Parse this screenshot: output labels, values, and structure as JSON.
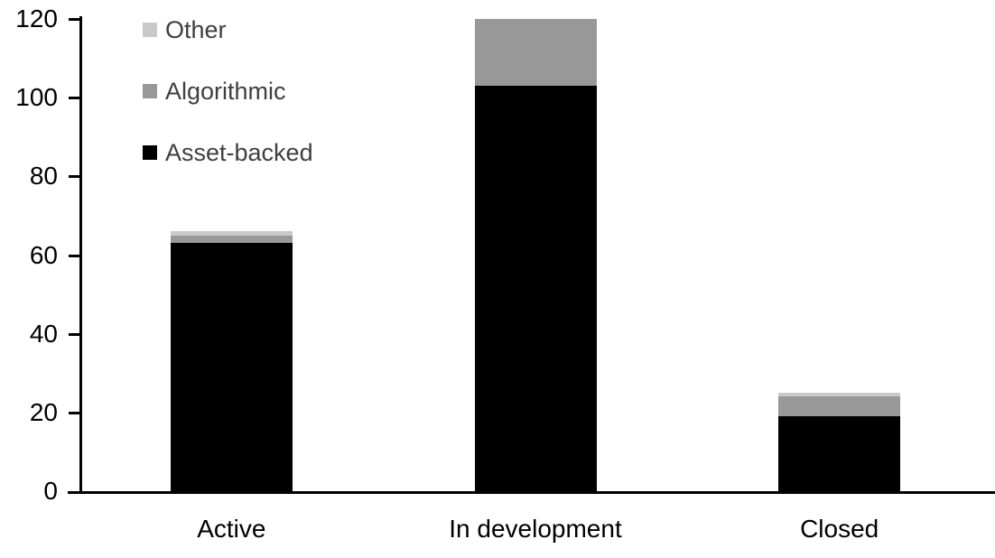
{
  "chart_data": {
    "type": "bar",
    "stacked": true,
    "title": "",
    "xlabel": "",
    "ylabel": "",
    "categories": [
      "Active",
      "In development",
      "Closed"
    ],
    "series": [
      {
        "name": "Asset-backed",
        "color": "#000000",
        "values": [
          63,
          103,
          19
        ]
      },
      {
        "name": "Algorithmic",
        "color": "#989898",
        "values": [
          2,
          17,
          5
        ]
      },
      {
        "name": "Other",
        "color": "#c9c9c9",
        "values": [
          1,
          0,
          1
        ]
      }
    ],
    "totals": [
      66,
      120,
      25
    ],
    "ylim": [
      0,
      120
    ],
    "yticks": [
      0,
      20,
      40,
      60,
      80,
      100,
      120
    ],
    "grid": false,
    "legend_position": "top-left",
    "legend_order": [
      "Other",
      "Algorithmic",
      "Asset-backed"
    ],
    "colors": {
      "axis": "#000000",
      "tick_label_text": "#000000",
      "category_label_text": "#000000",
      "legend_text": "#3f3f3f",
      "background": "#ffffff"
    }
  }
}
